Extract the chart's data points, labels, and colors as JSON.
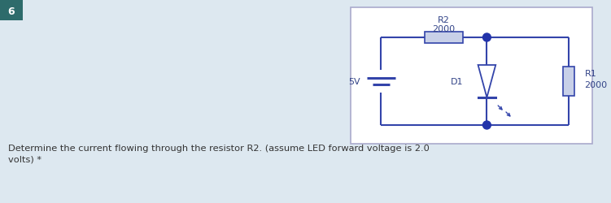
{
  "bg_color": "#dde8f0",
  "circuit_bg": "#ffffff",
  "circuit_border": "#aaaacc",
  "wire_color": "#3344aa",
  "dot_color": "#2233aa",
  "label_color": "#334488",
  "number_label": "6",
  "number_bg": "#2d6b6b",
  "number_text_color": "#ffffff",
  "question_text": "Determine the current flowing through the resistor R2. (assume LED forward voltage is 2.0\nvolts) *",
  "r2_label": "R2",
  "r2_value": "2000",
  "r1_label": "R1",
  "r1_value": "2000",
  "d1_label": "D1",
  "battery_label": "5V",
  "resistor_fill": "#c8d0e8",
  "fig_width": 7.51,
  "fig_height": 2.51,
  "dpi": 100
}
